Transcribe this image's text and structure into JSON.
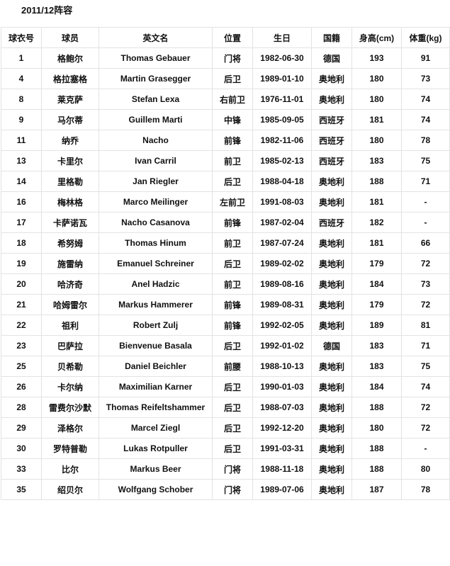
{
  "title": "2011/12阵容",
  "columns": [
    "球衣号",
    "球员",
    "英文名",
    "位置",
    "生日",
    "国籍",
    "身高(cm)",
    "体重(kg)"
  ],
  "rows": [
    [
      "1",
      "格鲍尔",
      "Thomas Gebauer",
      "门将",
      "1982-06-30",
      "德国",
      "193",
      "91"
    ],
    [
      "4",
      "格拉塞格",
      "Martin Grasegger",
      "后卫",
      "1989-01-10",
      "奥地利",
      "180",
      "73"
    ],
    [
      "8",
      "莱克萨",
      "Stefan Lexa",
      "右前卫",
      "1976-11-01",
      "奥地利",
      "180",
      "74"
    ],
    [
      "9",
      "马尔蒂",
      "Guillem Marti",
      "中锋",
      "1985-09-05",
      "西班牙",
      "181",
      "74"
    ],
    [
      "11",
      "纳乔",
      "Nacho",
      "前锋",
      "1982-11-06",
      "西班牙",
      "180",
      "78"
    ],
    [
      "13",
      "卡里尔",
      "Ivan Carril",
      "前卫",
      "1985-02-13",
      "西班牙",
      "183",
      "75"
    ],
    [
      "14",
      "里格勒",
      "Jan Riegler",
      "后卫",
      "1988-04-18",
      "奥地利",
      "188",
      "71"
    ],
    [
      "16",
      "梅林格",
      "Marco Meilinger",
      "左前卫",
      "1991-08-03",
      "奥地利",
      "181",
      "-"
    ],
    [
      "17",
      "卡萨诺瓦",
      "Nacho Casanova",
      "前锋",
      "1987-02-04",
      "西班牙",
      "182",
      "-"
    ],
    [
      "18",
      "希努姆",
      "Thomas Hinum",
      "前卫",
      "1987-07-24",
      "奥地利",
      "181",
      "66"
    ],
    [
      "19",
      "施雷纳",
      "Emanuel Schreiner",
      "后卫",
      "1989-02-02",
      "奥地利",
      "179",
      "72"
    ],
    [
      "20",
      "哈济奇",
      "Anel Hadzic",
      "前卫",
      "1989-08-16",
      "奥地利",
      "184",
      "73"
    ],
    [
      "21",
      "哈姆雷尔",
      "Markus Hammerer",
      "前锋",
      "1989-08-31",
      "奥地利",
      "179",
      "72"
    ],
    [
      "22",
      "祖利",
      "Robert Zulj",
      "前锋",
      "1992-02-05",
      "奥地利",
      "189",
      "81"
    ],
    [
      "23",
      "巴萨拉",
      "Bienvenue Basala",
      "后卫",
      "1992-01-02",
      "德国",
      "183",
      "71"
    ],
    [
      "25",
      "贝希勒",
      "Daniel Beichler",
      "前腰",
      "1988-10-13",
      "奥地利",
      "183",
      "75"
    ],
    [
      "26",
      "卡尔纳",
      "Maximilian Karner",
      "后卫",
      "1990-01-03",
      "奥地利",
      "184",
      "74"
    ],
    [
      "28",
      "雷费尔沙默",
      "Thomas Reifeltshammer",
      "后卫",
      "1988-07-03",
      "奥地利",
      "188",
      "72"
    ],
    [
      "29",
      "泽格尔",
      "Marcel Ziegl",
      "后卫",
      "1992-12-20",
      "奥地利",
      "180",
      "72"
    ],
    [
      "30",
      "罗特普勒",
      "Lukas Rotpuller",
      "后卫",
      "1991-03-31",
      "奥地利",
      "188",
      "-"
    ],
    [
      "33",
      "比尔",
      "Markus Beer",
      "门将",
      "1988-11-18",
      "奥地利",
      "188",
      "80"
    ],
    [
      "35",
      "绍贝尔",
      "Wolfgang Schober",
      "门将",
      "1989-07-06",
      "奥地利",
      "187",
      "78"
    ]
  ]
}
